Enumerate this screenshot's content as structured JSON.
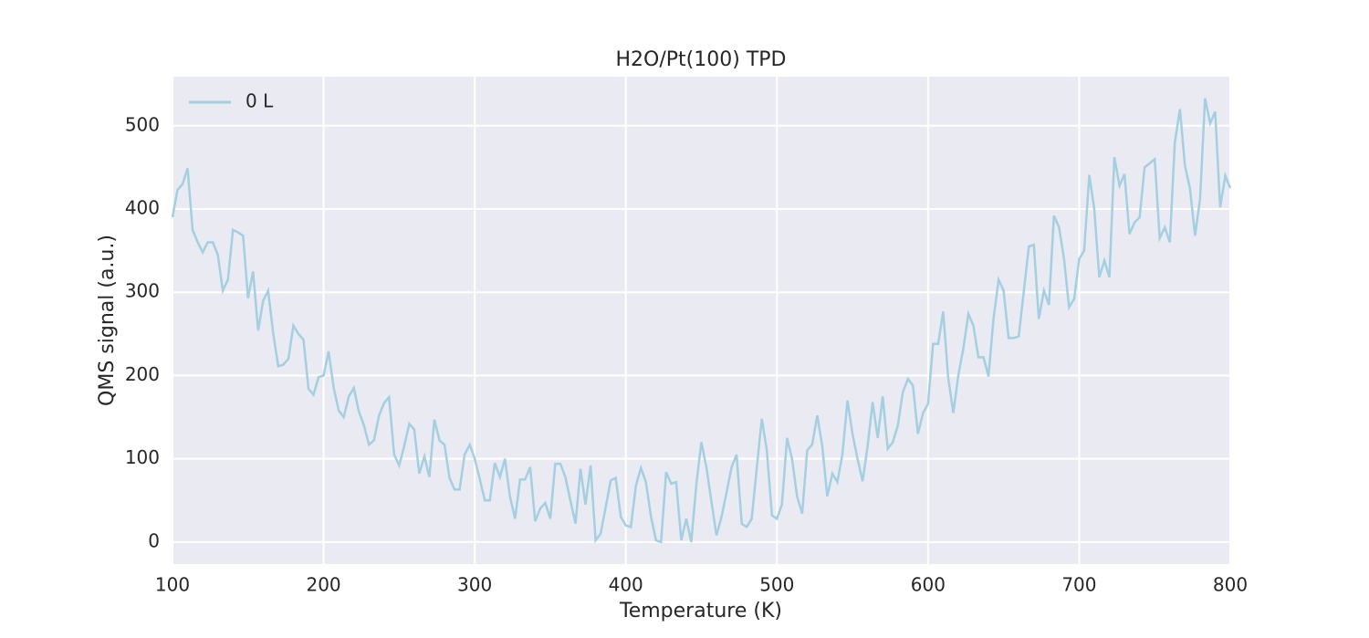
{
  "chart_data": {
    "type": "line",
    "title": "H2O/Pt(100) TPD",
    "x_label": "Temperature (K)",
    "y_label": "QMS signal (a.u.)",
    "x": [
      100,
      103.3,
      106.7,
      110,
      113.3,
      116.7,
      120,
      123.3,
      126.7,
      130,
      133.3,
      136.7,
      140,
      143.3,
      146.7,
      150,
      153.3,
      156.7,
      160,
      163.3,
      166.7,
      170,
      173.3,
      176.7,
      180,
      183.3,
      186.7,
      190,
      193.3,
      196.7,
      200,
      203.3,
      206.7,
      210,
      213.3,
      216.7,
      220,
      223.3,
      226.7,
      230,
      233.3,
      236.7,
      240,
      243.3,
      246.7,
      250,
      253.3,
      256.7,
      260,
      263.3,
      266.7,
      270,
      273.3,
      276.7,
      280,
      283.3,
      286.7,
      290,
      293.3,
      296.7,
      300,
      303.3,
      306.7,
      310,
      313.3,
      316.7,
      320,
      323.3,
      326.7,
      330,
      333.3,
      336.7,
      340,
      343.3,
      346.7,
      350,
      353.3,
      356.7,
      360,
      363.3,
      366.7,
      370,
      373.3,
      376.7,
      380,
      383.3,
      386.7,
      390,
      393.3,
      396.7,
      400,
      403.3,
      406.7,
      410,
      413.3,
      416.7,
      420,
      423.3,
      426.7,
      430,
      433.3,
      436.7,
      440,
      443.3,
      446.7,
      450,
      453.3,
      456.7,
      460,
      463.3,
      466.7,
      470,
      473.3,
      476.7,
      480,
      483.3,
      486.7,
      490,
      493.3,
      496.7,
      500,
      503.3,
      506.7,
      510,
      513.3,
      516.7,
      520,
      523.3,
      526.7,
      530,
      533.3,
      536.7,
      540,
      543.3,
      546.7,
      550,
      553.3,
      556.7,
      560,
      563.3,
      566.7,
      570,
      573.3,
      576.7,
      580,
      583.3,
      586.7,
      590,
      593.3,
      596.7,
      600,
      603.3,
      606.7,
      610,
      613.3,
      616.7,
      620,
      623.3,
      626.7,
      630,
      633.3,
      636.7,
      640,
      643.3,
      646.7,
      650,
      653.3,
      656.7,
      660,
      663.3,
      666.7,
      670,
      673.3,
      676.7,
      680,
      683.3,
      686.7,
      690,
      693.3,
      696.7,
      700,
      703.3,
      706.7,
      710,
      713.3,
      716.7,
      720,
      723.3,
      726.7,
      730,
      733.3,
      736.7,
      740,
      743.3,
      746.7,
      750,
      753.3,
      756.7,
      760,
      763.3,
      766.7,
      770,
      773.3,
      776.7,
      780,
      783.3,
      786.7,
      790,
      793.3,
      796.7,
      800
    ],
    "series": [
      {
        "name": "0 L",
        "color": "#a3cfe1",
        "values": [
          390,
          423,
          430,
          449,
          375,
          360,
          348,
          360,
          360,
          345,
          302,
          315,
          375,
          372,
          368,
          293,
          325,
          254,
          290,
          302,
          250,
          211,
          213,
          220,
          260,
          250,
          243,
          184,
          177,
          198,
          200,
          229,
          185,
          158,
          150,
          175,
          185,
          157,
          140,
          117,
          122,
          152,
          167,
          174,
          105,
          92,
          115,
          142,
          135,
          82,
          103,
          78,
          147,
          122,
          117,
          77,
          63,
          63,
          105,
          117,
          100,
          76,
          50,
          50,
          95,
          78,
          100,
          55,
          28,
          75,
          75,
          90,
          25,
          40,
          47,
          28,
          94,
          94,
          78,
          50,
          22,
          88,
          45,
          92,
          2,
          10,
          42,
          74,
          77,
          30,
          20,
          18,
          68,
          89,
          72,
          30,
          2,
          0,
          84,
          70,
          72,
          2,
          28,
          0,
          70,
          120,
          90,
          48,
          8,
          30,
          60,
          90,
          105,
          22,
          18,
          28,
          90,
          148,
          110,
          32,
          28,
          45,
          125,
          100,
          55,
          34,
          110,
          117,
          152,
          115,
          55,
          82,
          72,
          105,
          170,
          130,
          100,
          73,
          115,
          168,
          125,
          175,
          112,
          120,
          140,
          180,
          196,
          188,
          130,
          155,
          166,
          238,
          238,
          277,
          198,
          155,
          200,
          232,
          274,
          260,
          222,
          222,
          199,
          268,
          315,
          302,
          245,
          245,
          247,
          300,
          355,
          357,
          268,
          302,
          285,
          392,
          378,
          340,
          282,
          292,
          340,
          350,
          441,
          400,
          318,
          338,
          318,
          462,
          428,
          442,
          370,
          384,
          390,
          450,
          455,
          460,
          365,
          378,
          360,
          480,
          520,
          452,
          425,
          368,
          412,
          533,
          503,
          517,
          402,
          440,
          425
        ]
      }
    ],
    "xlim": [
      100,
      800
    ],
    "xticks": [
      100,
      200,
      300,
      400,
      500,
      600,
      700,
      800
    ],
    "ylim": [
      -26.5,
      559
    ],
    "yticks": [
      0,
      100,
      200,
      300,
      400,
      500
    ],
    "grid": true,
    "legend": "upper left"
  }
}
